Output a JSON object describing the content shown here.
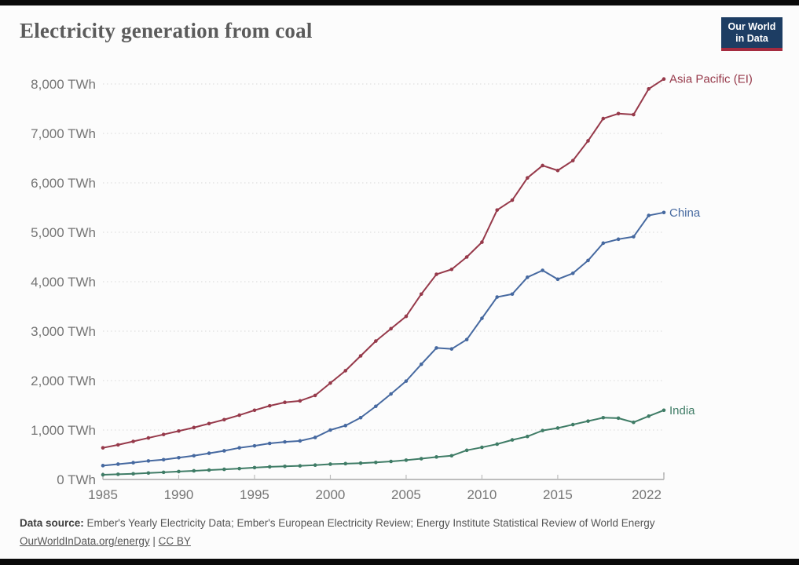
{
  "page": {
    "background": "#fcfcfc",
    "edge_bar_color": "#0a0a0a"
  },
  "header": {
    "title": "Electricity generation from coal",
    "logo": {
      "line1": "Our World",
      "line2": "in Data",
      "bg_color": "#1d3d63",
      "accent_color": "#a52b3f"
    }
  },
  "chart_data": {
    "type": "line",
    "title": "Electricity generation from coal",
    "unit": "TWh",
    "grid": "horizontal-dashed",
    "legend_position": "line-end-labels",
    "xlim": [
      1985,
      2022
    ],
    "ylim": [
      0,
      8200
    ],
    "yticks": [
      0,
      1000,
      2000,
      3000,
      4000,
      5000,
      6000,
      7000,
      8000
    ],
    "ytick_suffix": " TWh",
    "xticks": [
      1985,
      1990,
      1995,
      2000,
      2005,
      2010,
      2015,
      2022
    ],
    "x": [
      1985,
      1986,
      1987,
      1988,
      1989,
      1990,
      1991,
      1992,
      1993,
      1994,
      1995,
      1996,
      1997,
      1998,
      1999,
      2000,
      2001,
      2002,
      2003,
      2004,
      2005,
      2006,
      2007,
      2008,
      2009,
      2010,
      2011,
      2012,
      2013,
      2014,
      2015,
      2016,
      2017,
      2018,
      2019,
      2020,
      2021,
      2022
    ],
    "series": [
      {
        "name": "Asia Pacific (EI)",
        "color": "#96394a",
        "values": [
          640,
          700,
          770,
          840,
          910,
          980,
          1050,
          1130,
          1210,
          1300,
          1400,
          1490,
          1560,
          1590,
          1700,
          1950,
          2200,
          2500,
          2800,
          3050,
          3300,
          3750,
          4150,
          4250,
          4500,
          4800,
          5450,
          5650,
          6100,
          6350,
          6250,
          6450,
          6850,
          7300,
          7400,
          7380,
          7900,
          8100
        ]
      },
      {
        "name": "China",
        "color": "#4669a0",
        "values": [
          280,
          310,
          340,
          375,
          400,
          440,
          480,
          530,
          580,
          640,
          680,
          730,
          760,
          780,
          850,
          1000,
          1090,
          1250,
          1480,
          1730,
          1990,
          2330,
          2660,
          2640,
          2830,
          3260,
          3690,
          3750,
          4090,
          4230,
          4050,
          4170,
          4430,
          4780,
          4860,
          4910,
          5340,
          5400
        ]
      },
      {
        "name": "India",
        "color": "#3f7c66",
        "values": [
          95,
          105,
          115,
          130,
          145,
          160,
          175,
          190,
          205,
          220,
          240,
          255,
          265,
          275,
          290,
          310,
          320,
          330,
          345,
          365,
          390,
          420,
          455,
          480,
          590,
          650,
          715,
          800,
          870,
          990,
          1040,
          1110,
          1180,
          1250,
          1240,
          1155,
          1280,
          1400
        ]
      }
    ]
  },
  "footer": {
    "source_label": "Data source:",
    "source_text": "Ember's Yearly Electricity Data; Ember's European Electricity Review; Energy Institute Statistical Review of World Energy",
    "link_energy": "OurWorldInData.org/energy",
    "separator": "|",
    "license": "CC BY"
  }
}
